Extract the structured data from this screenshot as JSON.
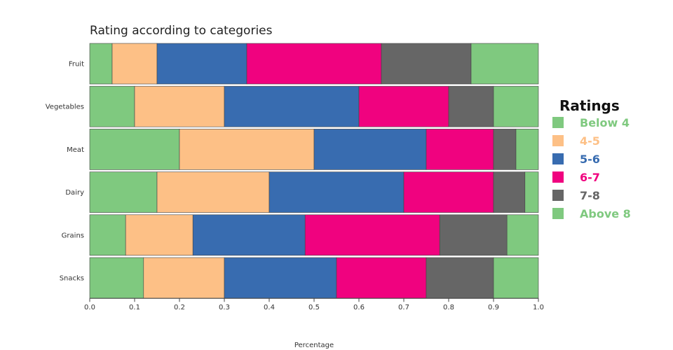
{
  "chart_data": {
    "type": "bar",
    "orientation": "horizontal",
    "stacked": true,
    "title": "Rating according to categories",
    "xlabel": "Percentage",
    "ylabel": "",
    "xlim": [
      0,
      1
    ],
    "x_ticks": [
      "0.0",
      "0.1",
      "0.2",
      "0.3",
      "0.4",
      "0.5",
      "0.6",
      "0.7",
      "0.8",
      "0.9",
      "1.0"
    ],
    "grid": false,
    "legend_title": "Ratings",
    "legend_position": "right",
    "categories": [
      "Fruit",
      "Vegetables",
      "Meat",
      "Dairy",
      "Grains",
      "Snacks"
    ],
    "series": [
      {
        "name": "Below 4",
        "color": "#7fc97f",
        "values": [
          0.05,
          0.1,
          0.2,
          0.15,
          0.08,
          0.12
        ]
      },
      {
        "name": "4-5",
        "color": "#fdc086",
        "values": [
          0.1,
          0.2,
          0.3,
          0.25,
          0.15,
          0.18
        ]
      },
      {
        "name": "5-6",
        "color": "#386cb0",
        "values": [
          0.2,
          0.3,
          0.25,
          0.3,
          0.25,
          0.25
        ]
      },
      {
        "name": "6-7",
        "color": "#f0027f",
        "values": [
          0.3,
          0.2,
          0.15,
          0.2,
          0.3,
          0.2
        ]
      },
      {
        "name": "7-8",
        "color": "#666666",
        "values": [
          0.2,
          0.1,
          0.05,
          0.07,
          0.15,
          0.15
        ]
      },
      {
        "name": "Above 8",
        "color": "#7fc97f",
        "values": [
          0.15,
          0.1,
          0.05,
          0.03,
          0.07,
          0.1
        ]
      }
    ]
  }
}
